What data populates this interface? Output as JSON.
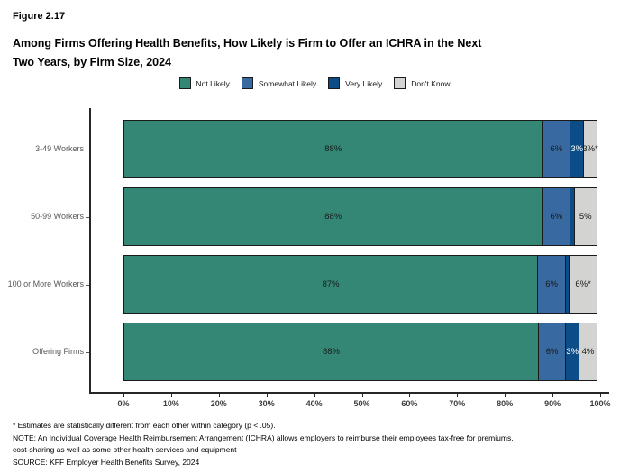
{
  "header": {
    "figure_label": "Figure 2.17",
    "title_line1": "Among Firms Offering Health Benefits, How Likely is Firm to Offer an ICHRA in the Next",
    "title_line2": "Two Years, by Firm Size, 2024"
  },
  "chart_data": {
    "type": "bar",
    "orientation": "horizontal",
    "stacked": true,
    "title": "Among Firms Offering Health Benefits, How Likely is Firm to Offer an ICHRA in the Next Two Years, by Firm Size, 2024",
    "categories": [
      "3-49 Workers",
      "50-99 Workers",
      "100 or More Workers",
      "Offering Firms"
    ],
    "series": [
      {
        "name": "Not Likely",
        "color": "#348775",
        "label_color": "#1a1a1a",
        "values": [
          88,
          88,
          87,
          88
        ],
        "labels": [
          "88%",
          "88%",
          "87%",
          "88%"
        ]
      },
      {
        "name": "Somewhat Likely",
        "color": "#3869a0",
        "label_color": "#1a1a1a",
        "values": [
          6,
          6,
          6,
          6
        ],
        "labels": [
          "6%",
          "6%",
          "6%",
          "6%"
        ]
      },
      {
        "name": "Very Likely",
        "color": "#0d4d87",
        "label_color": "#ffffff",
        "values": [
          3,
          1,
          1,
          3
        ],
        "labels": [
          "3%",
          "",
          "",
          "3%"
        ]
      },
      {
        "name": "Don't Know",
        "color": "#d3d3d1",
        "label_color": "#1a1a1a",
        "values": [
          3,
          5,
          6,
          4
        ],
        "labels": [
          "3%*",
          "5%",
          "6%*",
          "4%"
        ]
      }
    ],
    "x_ticks": [
      "0%",
      "10%",
      "20%",
      "30%",
      "40%",
      "50%",
      "60%",
      "70%",
      "80%",
      "90%",
      "100%"
    ],
    "xlim": [
      0,
      100
    ],
    "grid": false,
    "legend_position": "top"
  },
  "footnotes": {
    "lines": [
      "* Estimates are statistically different from each other within category (p < .05).",
      "NOTE: An Individual Coverage Health Reimbursement Arrangement (ICHRA) allows employers to reimburse their employees tax-free for premiums,",
      "cost-sharing as well as some other health services and equipment",
      "SOURCE: KFF Employer Health Benefits Survey, 2024"
    ]
  }
}
